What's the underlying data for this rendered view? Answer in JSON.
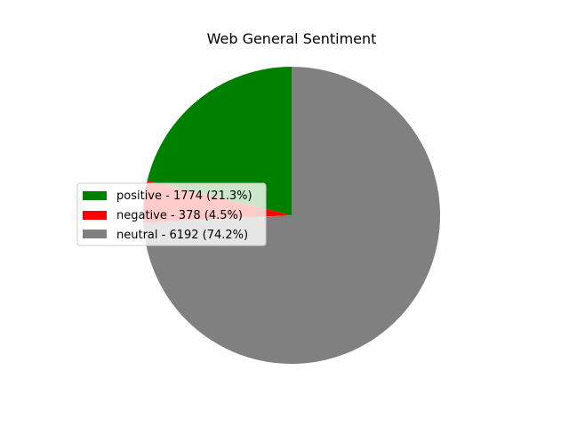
{
  "chart_data": {
    "type": "pie",
    "title": "Web General Sentiment",
    "legend_position": "center-left",
    "start_angle_deg": 90,
    "direction": "counterclockwise",
    "slices": [
      {
        "label": "positive",
        "value": 1774,
        "percent": 21.3,
        "color": "#008000",
        "legend": "positive - 1774 (21.3%)"
      },
      {
        "label": "negative",
        "value": 378,
        "percent": 4.5,
        "color": "#ff0000",
        "legend": "negative - 378 (4.5%)"
      },
      {
        "label": "neutral",
        "value": 6192,
        "percent": 74.2,
        "color": "#808080",
        "legend": "neutral - 6192 (74.2%)"
      }
    ]
  }
}
